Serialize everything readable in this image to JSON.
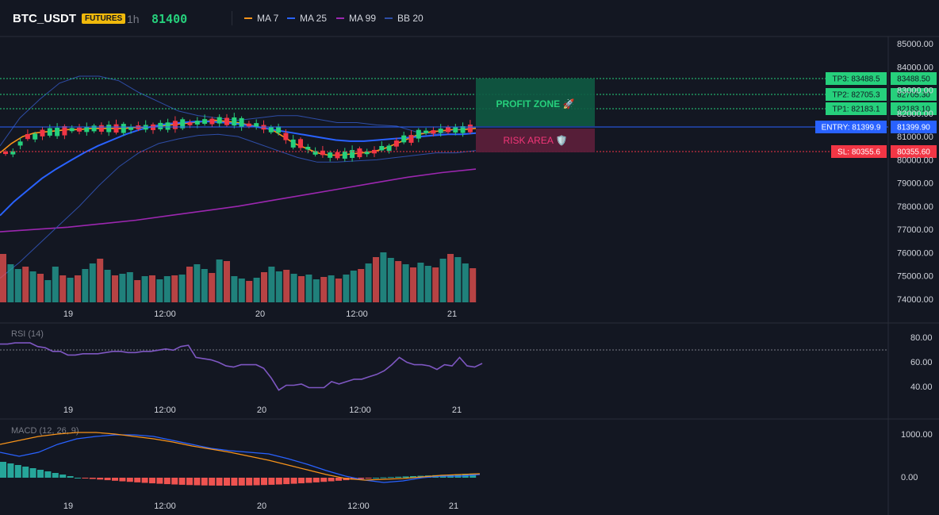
{
  "header": {
    "symbol": "BTC_USDT",
    "badge": "FUTURES",
    "timeframe": "1h",
    "last_price": "81400",
    "indicators": [
      {
        "label": "MA 7",
        "color": "#f7931a"
      },
      {
        "label": "MA 25",
        "color": "#2962ff"
      },
      {
        "label": "MA 99",
        "color": "#9c27b0"
      },
      {
        "label": "BB 20",
        "color": "#2e4da6"
      }
    ]
  },
  "price_axis": [
    "85000.00",
    "84000.00",
    "83000.00",
    "82000.00",
    "81000.00",
    "80000.00",
    "79000.00",
    "78000.00",
    "77000.00",
    "76000.00",
    "75000.00",
    "74000.00"
  ],
  "time_axis": [
    "19",
    "12:00",
    "20",
    "12:00",
    "21"
  ],
  "levels": {
    "tp3": {
      "label": "TP3: 83488.5",
      "value": "83488.50",
      "price": 83488.5,
      "color": "#26d07c"
    },
    "tp2": {
      "label": "TP2: 82705.3",
      "value": "82705.30",
      "price": 82705.3,
      "color": "#26d07c"
    },
    "tp1": {
      "label": "TP1: 82183.1",
      "value": "82183.10",
      "price": 82183.1,
      "color": "#26d07c"
    },
    "entry": {
      "label": "ENTRY: 81399.9",
      "value": "81399.90",
      "price": 81399.9,
      "color": "#2962ff"
    },
    "sl": {
      "label": "SL: 80355.6",
      "value": "80355.60",
      "price": 80355.6,
      "color": "#f23645"
    }
  },
  "zones": {
    "profit": "PROFIT ZONE 🚀",
    "risk": "RISK AREA 🛡️"
  },
  "rsi": {
    "label": "RSI (14)",
    "axis": [
      "80.00",
      "60.00",
      "40.00"
    ],
    "overbought": 70,
    "values": [
      75,
      75,
      76,
      76,
      76,
      73,
      72,
      69,
      69,
      66,
      66,
      67,
      67,
      67,
      68,
      69,
      69,
      68,
      68,
      69,
      69,
      70,
      71,
      70,
      73,
      74,
      64,
      63,
      62,
      60,
      57,
      56,
      58,
      58,
      58,
      55,
      47,
      37,
      41,
      41,
      42,
      39,
      39,
      39,
      44,
      42,
      44,
      46,
      46,
      48,
      50,
      53,
      58,
      64,
      60,
      58,
      58,
      57,
      54,
      58,
      57,
      64,
      57,
      56,
      59
    ],
    "color": "#7e57c2"
  },
  "macd": {
    "label": "MACD (12, 26, 9)",
    "axis": [
      "1000.00",
      "0.00"
    ]
  },
  "chart_data": {
    "type": "candlestick",
    "title": "BTC_USDT",
    "timeframe": "1h",
    "ylim": [
      74000,
      85000
    ],
    "x_ticks": [
      "19",
      "12:00",
      "20",
      "12:00",
      "21"
    ],
    "series": [
      {
        "name": "MA 7",
        "color": "#f7931a",
        "values": [
          80300,
          80700,
          81000,
          81150,
          81200,
          81250,
          81300,
          81300,
          81350,
          81350,
          81350,
          81350,
          81400,
          81400,
          81450,
          81500,
          81550,
          81600,
          81650,
          81700,
          81650,
          81600,
          81500,
          81400,
          81300,
          81000,
          80700,
          80500,
          80300,
          80200,
          80200,
          80250,
          80300,
          80350,
          80500,
          80700,
          80900,
          81100,
          81200,
          81250,
          81300,
          81300,
          81350
        ]
      },
      {
        "name": "MA 25",
        "color": "#2962ff",
        "values": [
          77600,
          78200,
          78700,
          79200,
          79600,
          79950,
          80300,
          80600,
          80850,
          81100,
          81300,
          81450,
          81550,
          81600,
          81650,
          81650,
          81600,
          81550,
          81450,
          81350,
          81250,
          81150,
          81050,
          80950,
          80850,
          80800,
          80800,
          80850,
          80900,
          80950,
          81000,
          81050,
          81100,
          81100,
          81150
        ]
      },
      {
        "name": "MA 99",
        "color": "#9c27b0",
        "values": [
          76900,
          77000,
          77100,
          77250,
          77400,
          77600,
          77800,
          78000,
          78250,
          78500,
          78750,
          79000,
          79250,
          79450,
          79600
        ]
      }
    ],
    "volume_color_up": "#26a69a",
    "volume_color_down": "#ef5350",
    "volumes": [
      61,
      48,
      42,
      45,
      39,
      36,
      28,
      45,
      34,
      31,
      34,
      42,
      49,
      55,
      41,
      34,
      36,
      38,
      28,
      33,
      34,
      29,
      33,
      34,
      35,
      45,
      48,
      42,
      37,
      54,
      52,
      33,
      30,
      27,
      31,
      38,
      45,
      39,
      41,
      36,
      33,
      35,
      29,
      32,
      34,
      30,
      35,
      40,
      42,
      49,
      57,
      63,
      56,
      52,
      48,
      44,
      50,
      46,
      44,
      55,
      61,
      57,
      49,
      43
    ]
  }
}
